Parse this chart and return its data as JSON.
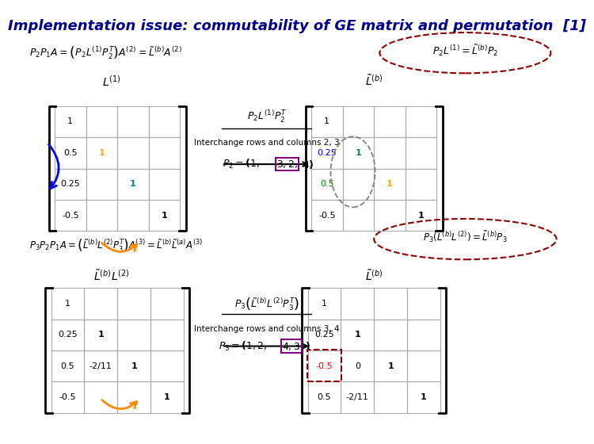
{
  "title": "Implementation issue: commutability of GE matrix and permutation  [1]",
  "title_color": "#00008B",
  "title_fontsize": 13,
  "bg_color": "#ffffff",
  "matrix1_data": [
    [
      "1",
      "",
      "",
      ""
    ],
    [
      "0.5",
      "1",
      "",
      ""
    ],
    [
      "0.25",
      "",
      "1",
      ""
    ],
    [
      "-0.5",
      "",
      "",
      "1"
    ]
  ],
  "matrix1_colors": [
    [
      "black",
      "",
      "",
      ""
    ],
    [
      "black",
      "orange",
      "",
      ""
    ],
    [
      "black",
      "",
      "teal",
      ""
    ],
    [
      "black",
      "",
      "",
      "black"
    ]
  ],
  "matrix2_data": [
    [
      "1",
      "",
      "",
      ""
    ],
    [
      "0.25",
      "1",
      "",
      ""
    ],
    [
      "0.5",
      "",
      "1",
      ""
    ],
    [
      "-0.5",
      "",
      "",
      "1"
    ]
  ],
  "matrix2_colors": [
    [
      "black",
      "",
      "",
      ""
    ],
    [
      "blue",
      "teal",
      "",
      ""
    ],
    [
      "green",
      "",
      "orange",
      ""
    ],
    [
      "black",
      "",
      "",
      "black"
    ]
  ],
  "matrix3_data": [
    [
      "1",
      "",
      "",
      ""
    ],
    [
      "0.25",
      "1",
      "",
      ""
    ],
    [
      "0.5",
      "-2/11",
      "1",
      ""
    ],
    [
      "-0.5",
      "",
      "",
      "1"
    ]
  ],
  "matrix3_colors": [
    [
      "black",
      "",
      "",
      ""
    ],
    [
      "black",
      "black",
      "",
      ""
    ],
    [
      "black",
      "black",
      "black",
      ""
    ],
    [
      "black",
      "",
      "",
      "black"
    ]
  ],
  "matrix4_data": [
    [
      "1",
      "",
      "",
      ""
    ],
    [
      "0.25",
      "1",
      "",
      ""
    ],
    [
      "-0.5",
      "0",
      "1",
      ""
    ],
    [
      "0.5",
      "-2/11",
      "",
      "1"
    ]
  ],
  "matrix4_colors": [
    [
      "black",
      "",
      "",
      ""
    ],
    [
      "black",
      "black",
      "",
      ""
    ],
    [
      "red",
      "black",
      "black",
      ""
    ],
    [
      "black",
      "black",
      "",
      "black"
    ]
  ]
}
